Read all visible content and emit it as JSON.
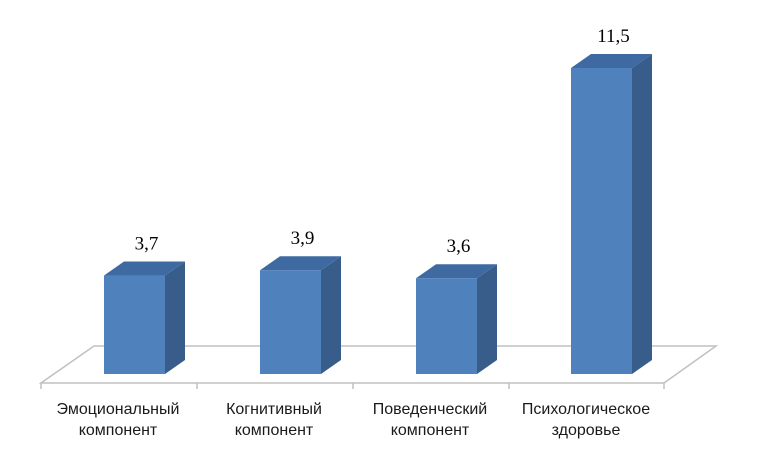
{
  "chart_data": {
    "type": "bar",
    "title": "",
    "xlabel": "",
    "ylabel": "",
    "categories": [
      "Эмоциональный компонент",
      "Когнитивный компонент",
      "Поведенческий компонент",
      "Психологическое здоровье"
    ],
    "category_lines": [
      [
        "Эмоциональный",
        "компонент"
      ],
      [
        "Когнитивный",
        "компонент"
      ],
      [
        "Поведенческий",
        "компонент"
      ],
      [
        "Психологическое",
        "здоровье"
      ]
    ],
    "values": [
      3.7,
      3.9,
      3.6,
      11.5
    ],
    "value_labels": [
      "3,7",
      "3,9",
      "3,6",
      "11,5"
    ],
    "ylim": [
      0,
      11.5
    ],
    "grid": false,
    "legend": "none",
    "style": "3d-column",
    "colors": {
      "front": "#4f81bd",
      "side": "#385d8a",
      "top": "#3f6aa1",
      "floor": "#c0c0c0"
    }
  }
}
